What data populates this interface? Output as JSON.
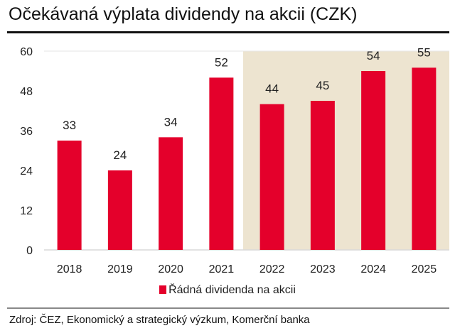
{
  "title": "Očekávaná výplata dividendy na akcii (CZK)",
  "source": "Zdroj: ČEZ, Ekonomický a strategický výzkum, Komerční banka",
  "chart_data": {
    "type": "bar",
    "categories": [
      "2018",
      "2019",
      "2020",
      "2021",
      "2022",
      "2023",
      "2024",
      "2025"
    ],
    "series": [
      {
        "name": "Řádná dividenda na akcii",
        "values": [
          33,
          24,
          34,
          52,
          44,
          45,
          54,
          55
        ],
        "color": "#e4002b"
      }
    ],
    "data_labels": [
      "33",
      "24",
      "34",
      "52",
      "44",
      "45",
      "54",
      "55"
    ],
    "ylim": [
      0,
      60
    ],
    "yticks": [
      "0",
      "12",
      "24",
      "36",
      "48",
      "60"
    ],
    "shaded_range": [
      "2022",
      "2025"
    ],
    "shade_color": "#ede4d0",
    "legend": "bottom",
    "grid": false
  }
}
